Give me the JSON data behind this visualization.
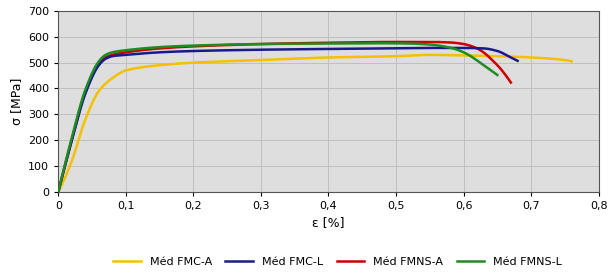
{
  "title": "",
  "xlabel": "ε [%]",
  "ylabel": "σ [MPa]",
  "xlim": [
    0,
    0.8
  ],
  "ylim": [
    0,
    700
  ],
  "xticks": [
    0,
    0.1,
    0.2,
    0.3,
    0.4,
    0.5,
    0.6,
    0.7,
    0.8
  ],
  "yticks": [
    0,
    100,
    200,
    300,
    400,
    500,
    600,
    700
  ],
  "background_color": "#ffffff",
  "plot_bg_color": "#dedede",
  "grid_color": "#c0c0c0",
  "series": {
    "FMC-A": {
      "color": "#f5c000",
      "linewidth": 1.8,
      "zorder": 2,
      "label": "Méd FMC-A",
      "pts_x": [
        0.0,
        0.02,
        0.04,
        0.06,
        0.08,
        0.1,
        0.15,
        0.2,
        0.3,
        0.4,
        0.5,
        0.55,
        0.6,
        0.65,
        0.7,
        0.75,
        0.76
      ],
      "pts_y": [
        0,
        120,
        280,
        390,
        440,
        470,
        490,
        500,
        510,
        520,
        525,
        530,
        528,
        525,
        520,
        510,
        505
      ]
    },
    "FMC-L": {
      "color": "#1a1a8c",
      "linewidth": 1.8,
      "zorder": 4,
      "label": "Méd FMC-L",
      "pts_x": [
        0.0,
        0.02,
        0.04,
        0.06,
        0.07,
        0.08,
        0.1,
        0.15,
        0.2,
        0.3,
        0.4,
        0.5,
        0.55,
        0.6,
        0.63,
        0.65,
        0.67,
        0.68
      ],
      "pts_y": [
        0,
        200,
        380,
        490,
        515,
        525,
        530,
        540,
        545,
        550,
        553,
        556,
        557,
        557,
        555,
        545,
        520,
        507
      ]
    },
    "FMNS-A": {
      "color": "#cc0000",
      "linewidth": 1.8,
      "zorder": 3,
      "label": "Méd FMNS-A",
      "pts_x": [
        0.0,
        0.02,
        0.04,
        0.06,
        0.07,
        0.08,
        0.1,
        0.15,
        0.2,
        0.3,
        0.4,
        0.5,
        0.55,
        0.58,
        0.6,
        0.62,
        0.65,
        0.67
      ],
      "pts_y": [
        0,
        200,
        385,
        495,
        520,
        530,
        540,
        555,
        563,
        572,
        577,
        580,
        580,
        578,
        572,
        555,
        490,
        423
      ]
    },
    "FMNS-L": {
      "color": "#1e8c1e",
      "linewidth": 1.8,
      "zorder": 5,
      "label": "Méd FMNS-L",
      "pts_x": [
        0.0,
        0.02,
        0.04,
        0.06,
        0.07,
        0.08,
        0.1,
        0.15,
        0.2,
        0.3,
        0.4,
        0.48,
        0.52,
        0.55,
        0.58,
        0.6,
        0.63,
        0.65
      ],
      "pts_y": [
        0,
        210,
        395,
        505,
        530,
        540,
        548,
        560,
        566,
        572,
        574,
        575,
        574,
        570,
        558,
        540,
        490,
        452
      ]
    }
  },
  "legend_order": [
    "FMC-A",
    "FMC-L",
    "FMNS-A",
    "FMNS-L"
  ]
}
